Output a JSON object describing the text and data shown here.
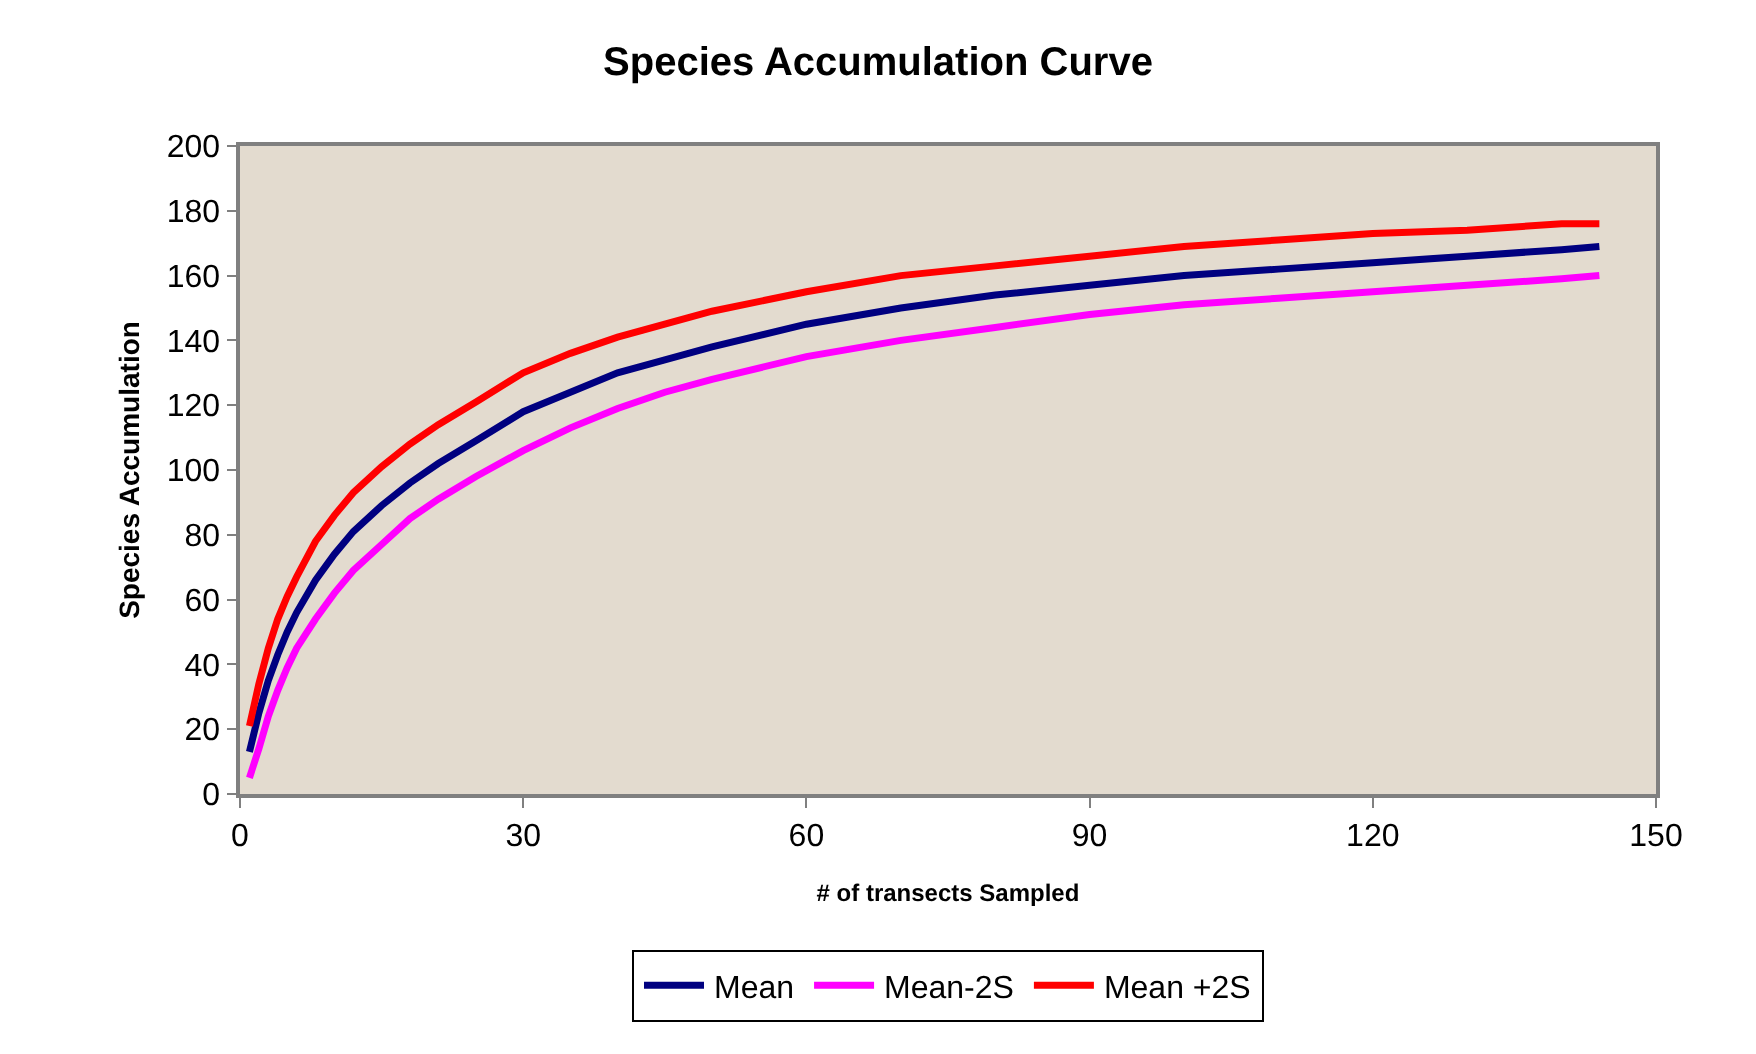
{
  "chart_data": {
    "type": "line",
    "title": "Species Accumulation Curve",
    "xlabel": "# of transects Sampled",
    "ylabel": "Species Accumulation",
    "x": [
      1,
      2,
      3,
      4,
      5,
      6,
      8,
      10,
      12,
      15,
      18,
      21,
      25,
      30,
      35,
      40,
      45,
      50,
      60,
      70,
      80,
      90,
      100,
      110,
      120,
      130,
      140,
      144
    ],
    "series": [
      {
        "name": "Mean",
        "color": "#000080",
        "values": [
          13,
          25,
          35,
          43,
          50,
          56,
          66,
          74,
          81,
          89,
          96,
          102,
          109,
          118,
          124,
          130,
          134,
          138,
          145,
          150,
          154,
          157,
          160,
          162,
          164,
          166,
          168,
          169
        ]
      },
      {
        "name": "Mean-2S",
        "color": "#ff00ff",
        "values": [
          5,
          14,
          24,
          32,
          39,
          45,
          54,
          62,
          69,
          77,
          85,
          91,
          98,
          106,
          113,
          119,
          124,
          128,
          135,
          140,
          144,
          148,
          151,
          153,
          155,
          157,
          159,
          160
        ]
      },
      {
        "name": "Mean +2S",
        "color": "#ff0000",
        "values": [
          21,
          34,
          45,
          54,
          61,
          67,
          78,
          86,
          93,
          101,
          108,
          114,
          121,
          130,
          136,
          141,
          145,
          149,
          155,
          160,
          163,
          166,
          169,
          171,
          173,
          174,
          176,
          176
        ]
      }
    ],
    "xlim": [
      0,
      150
    ],
    "xticks": [
      0,
      30,
      60,
      90,
      120,
      150
    ],
    "ylim": [
      0,
      200
    ],
    "yticks": [
      0,
      20,
      40,
      60,
      80,
      100,
      120,
      140,
      160,
      180,
      200
    ],
    "grid": false,
    "legend": "bottom",
    "marker": "none",
    "line_style": "solid"
  }
}
